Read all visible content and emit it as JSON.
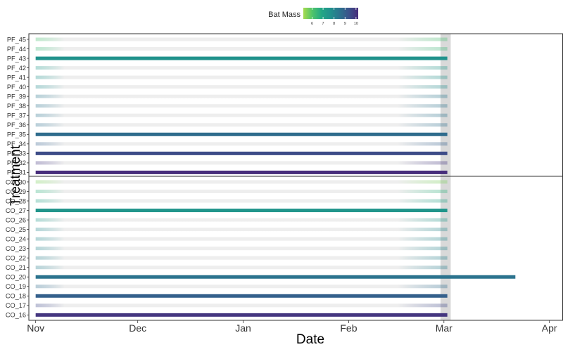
{
  "chart_data": {
    "type": "gantt",
    "xlabel": "Date",
    "ylabel": "Treatment",
    "legend": {
      "title": "Bat Mass",
      "ticks": [
        6,
        7,
        8,
        9,
        10
      ],
      "range": [
        5.2,
        10.2
      ],
      "placement": "top",
      "colors": [
        "#a6db4f",
        "#4fc46a",
        "#22a785",
        "#218f8d",
        "#2c728e",
        "#3b528b",
        "#472d7b"
      ]
    },
    "x_ticks": [
      {
        "label": "Nov",
        "date": "2021-11-01"
      },
      {
        "label": "Dec",
        "date": "2021-12-01"
      },
      {
        "label": "Jan",
        "date": "2022-01-01"
      },
      {
        "label": "Feb",
        "date": "2022-02-01"
      },
      {
        "label": "Mar",
        "date": "2022-03-01"
      },
      {
        "label": "Apr",
        "date": "2022-04-01"
      }
    ],
    "xlim": [
      "2021-10-30",
      "2022-04-05"
    ],
    "reference_band": {
      "start": "2022-02-28",
      "end": "2022-03-03",
      "color": "#d9d9d9"
    },
    "groups": [
      {
        "name": "PF",
        "rows": [
          {
            "label": "PF_45",
            "mass": 6.2,
            "start": "2021-11-01",
            "end": "2022-03-02",
            "solid": false
          },
          {
            "label": "PF_44",
            "mass": 6.4,
            "start": "2021-11-01",
            "end": "2022-03-02",
            "solid": false
          },
          {
            "label": "PF_43",
            "mass": 7.6,
            "start": "2021-11-01",
            "end": "2022-03-02",
            "solid": true
          },
          {
            "label": "PF_42",
            "mass": 7.4,
            "start": "2021-11-01",
            "end": "2022-03-02",
            "solid": false
          },
          {
            "label": "PF_41",
            "mass": 7.6,
            "start": "2021-11-01",
            "end": "2022-03-02",
            "solid": false
          },
          {
            "label": "PF_40",
            "mass": 7.8,
            "start": "2021-11-01",
            "end": "2022-03-02",
            "solid": false
          },
          {
            "label": "PF_39",
            "mass": 8.4,
            "start": "2021-11-01",
            "end": "2022-03-02",
            "solid": false
          },
          {
            "label": "PF_38",
            "mass": 8.5,
            "start": "2021-11-01",
            "end": "2022-03-02",
            "solid": false
          },
          {
            "label": "PF_37",
            "mass": 8.5,
            "start": "2021-11-01",
            "end": "2022-03-02",
            "solid": false
          },
          {
            "label": "PF_36",
            "mass": 8.6,
            "start": "2021-11-01",
            "end": "2022-03-02",
            "solid": false
          },
          {
            "label": "PF_35",
            "mass": 8.7,
            "start": "2021-11-01",
            "end": "2022-03-02",
            "solid": true
          },
          {
            "label": "PF_34",
            "mass": 9.0,
            "start": "2021-11-01",
            "end": "2022-03-02",
            "solid": false
          },
          {
            "label": "PF_33",
            "mass": 9.5,
            "start": "2021-11-01",
            "end": "2022-03-02",
            "solid": true
          },
          {
            "label": "PF_32",
            "mass": 10.0,
            "start": "2021-11-01",
            "end": "2022-03-02",
            "solid": false
          },
          {
            "label": "PF_31",
            "mass": 10.2,
            "start": "2021-11-01",
            "end": "2022-03-02",
            "solid": true
          }
        ]
      },
      {
        "name": "CO",
        "rows": [
          {
            "label": "CO_30",
            "mass": 5.6,
            "start": "2021-11-01",
            "end": "2022-03-02",
            "solid": false
          },
          {
            "label": "CO_29",
            "mass": 6.6,
            "start": "2021-11-01",
            "end": "2022-03-02",
            "solid": false
          },
          {
            "label": "CO_28",
            "mass": 7.0,
            "start": "2021-11-01",
            "end": "2022-03-02",
            "solid": false
          },
          {
            "label": "CO_27",
            "mass": 7.5,
            "start": "2021-11-01",
            "end": "2022-03-02",
            "solid": true
          },
          {
            "label": "CO_26",
            "mass": 7.4,
            "start": "2021-11-01",
            "end": "2022-03-02",
            "solid": false
          },
          {
            "label": "CO_25",
            "mass": 7.9,
            "start": "2021-11-01",
            "end": "2022-03-02",
            "solid": false
          },
          {
            "label": "CO_24",
            "mass": 7.9,
            "start": "2021-11-01",
            "end": "2022-03-02",
            "solid": false
          },
          {
            "label": "CO_23",
            "mass": 8.0,
            "start": "2021-11-01",
            "end": "2022-03-02",
            "solid": false
          },
          {
            "label": "CO_22",
            "mass": 8.1,
            "start": "2021-11-01",
            "end": "2022-03-02",
            "solid": false
          },
          {
            "label": "CO_21",
            "mass": 8.2,
            "start": "2021-11-01",
            "end": "2022-03-02",
            "solid": false
          },
          {
            "label": "CO_20",
            "mass": 8.5,
            "start": "2021-11-01",
            "end": "2022-03-22",
            "solid": true
          },
          {
            "label": "CO_19",
            "mass": 8.7,
            "start": "2021-11-01",
            "end": "2022-03-02",
            "solid": false
          },
          {
            "label": "CO_18",
            "mass": 9.0,
            "start": "2021-11-01",
            "end": "2022-03-02",
            "solid": true
          },
          {
            "label": "CO_17",
            "mass": 9.6,
            "start": "2021-11-01",
            "end": "2022-03-02",
            "solid": false
          },
          {
            "label": "CO_16",
            "mass": 10.0,
            "start": "2021-11-01",
            "end": "2022-03-02",
            "solid": true
          }
        ]
      }
    ]
  }
}
